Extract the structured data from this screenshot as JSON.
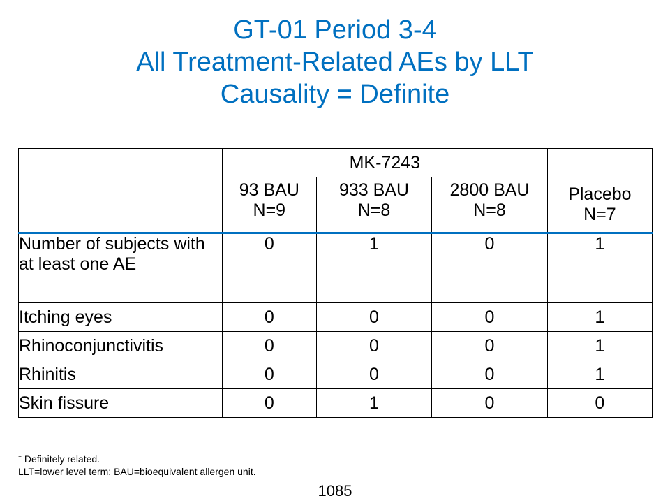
{
  "title": {
    "line1": "GT-01 Period 3-4",
    "line2": "All Treatment-Related AEs by LLT",
    "line3": "Causality = Definite"
  },
  "table": {
    "group_header": "MK-7243",
    "columns": [
      {
        "dose": "93 BAU",
        "n": "N=9"
      },
      {
        "dose": "933 BAU",
        "n": "N=8"
      },
      {
        "dose": "2800 BAU",
        "n": "N=8"
      },
      {
        "dose": "Placebo",
        "n": "N=7"
      }
    ],
    "rows": [
      {
        "label": "Number of subjects with at least one AE",
        "values": [
          "0",
          "1",
          "0",
          "1"
        ]
      },
      {
        "label": "Itching eyes",
        "values": [
          "0",
          "0",
          "0",
          "1"
        ]
      },
      {
        "label": "Rhinoconjunctivitis",
        "values": [
          "0",
          "0",
          "0",
          "1"
        ]
      },
      {
        "label": "Rhinitis",
        "values": [
          "0",
          "0",
          "0",
          "1"
        ]
      },
      {
        "label": "Skin fissure",
        "values": [
          "0",
          "1",
          "0",
          "0"
        ]
      }
    ]
  },
  "footnote": {
    "dagger": "†",
    "line1": "Definitely related.",
    "line2": "LLT=lower level term; BAU=bioequivalent allergen unit."
  },
  "page_number": "1085",
  "colors": {
    "title": "#0070C0",
    "header_rule": "#0070C0"
  }
}
